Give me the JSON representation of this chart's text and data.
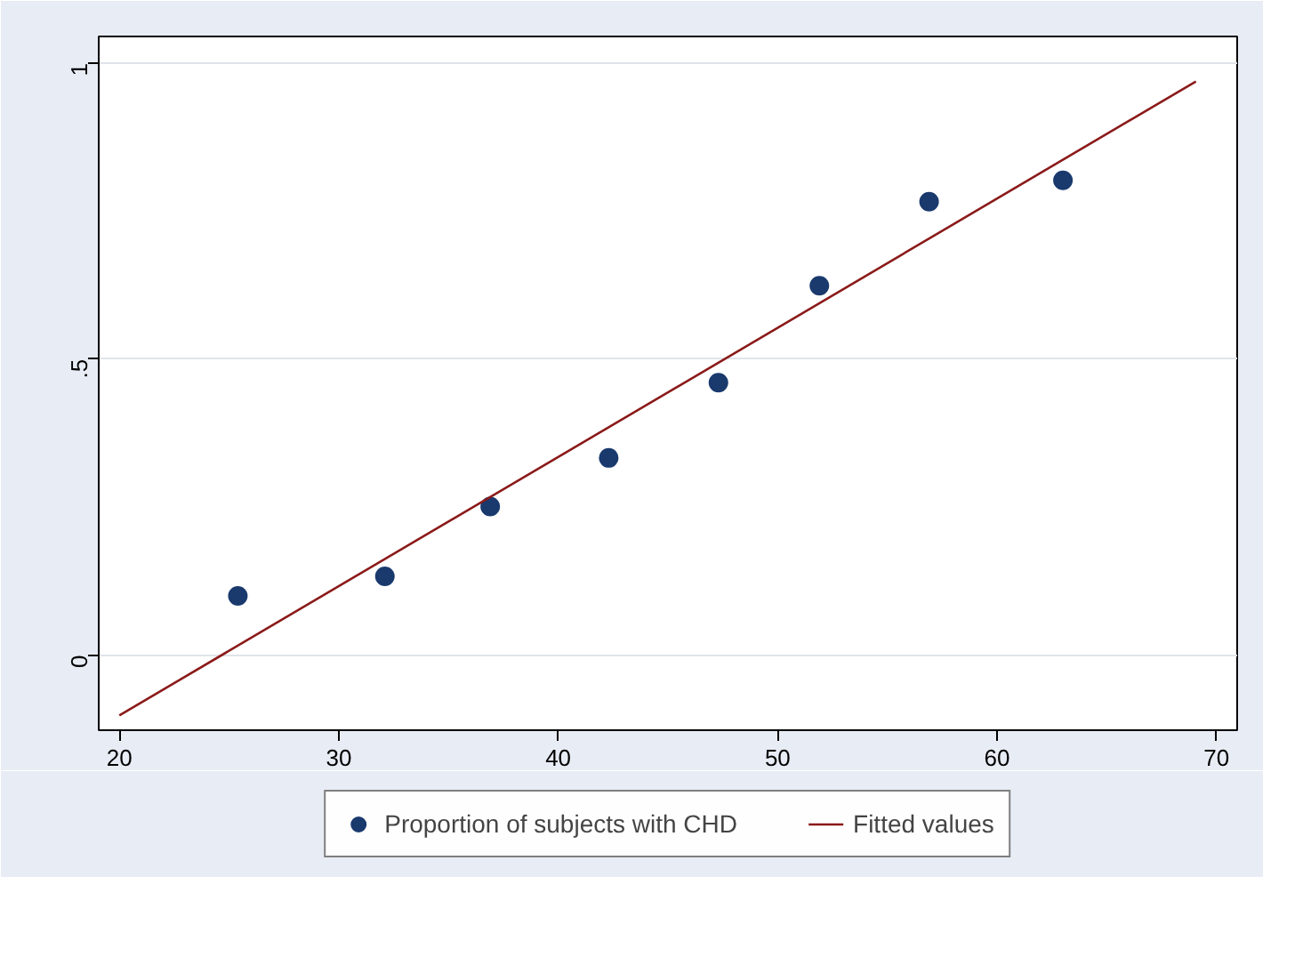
{
  "chart_data": {
    "type": "scatter",
    "xlim": [
      19.06,
      70.94
    ],
    "ylim": [
      -0.127,
      1.045
    ],
    "xticks": [
      20,
      30,
      40,
      50,
      60,
      70
    ],
    "yticks": [
      0,
      {
        "value": 0.5,
        "label": ".5"
      },
      1
    ],
    "grid": "y",
    "legend": "bottom",
    "series": [
      {
        "name": "Proportion of subjects with CHD",
        "color": "#1a3a6e",
        "marker": "circle",
        "x": [
          25.4,
          32.1,
          36.9,
          42.3,
          47.3,
          51.9,
          56.9,
          63.0
        ],
        "values": [
          0.1,
          0.133,
          0.251,
          0.333,
          0.46,
          0.624,
          0.766,
          0.802
        ]
      },
      {
        "name": "Fitted values",
        "type": "line",
        "color": "#8b1a1a",
        "line_style": "solid",
        "x": [
          20,
          69.06
        ],
        "values": [
          -0.102,
          0.969
        ]
      }
    ]
  }
}
